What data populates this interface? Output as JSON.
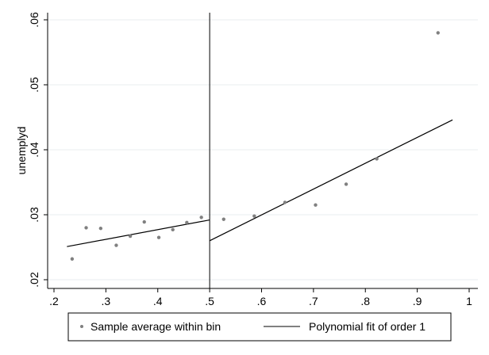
{
  "chart_data": {
    "type": "scatter",
    "title": "",
    "xlabel": "",
    "ylabel": "unemplyd",
    "xlim": [
      0.2,
      1.0
    ],
    "ylim": [
      0.02,
      0.06
    ],
    "x_ticks": [
      0.2,
      0.3,
      0.4,
      0.5,
      0.6,
      0.7,
      0.8,
      0.9,
      1.0
    ],
    "x_tick_labels": [
      ".2",
      ".3",
      ".4",
      ".5",
      ".6",
      ".7",
      ".8",
      ".9",
      "1"
    ],
    "y_ticks": [
      0.02,
      0.03,
      0.04,
      0.05,
      0.06
    ],
    "y_tick_labels": [
      ".02",
      ".03",
      ".04",
      ".05",
      ".06"
    ],
    "grid": "horizontal",
    "cutoff": 0.5,
    "series": [
      {
        "name": "Sample average within bin",
        "kind": "scatter",
        "color": "#808080",
        "points": [
          [
            0.235,
            0.0232
          ],
          [
            0.262,
            0.028
          ],
          [
            0.29,
            0.0279
          ],
          [
            0.32,
            0.0253
          ],
          [
            0.347,
            0.0267
          ],
          [
            0.374,
            0.0289
          ],
          [
            0.402,
            0.0265
          ],
          [
            0.429,
            0.0277
          ],
          [
            0.456,
            0.0288
          ],
          [
            0.484,
            0.0296
          ],
          [
            0.527,
            0.0293
          ],
          [
            0.586,
            0.0298
          ],
          [
            0.645,
            0.0319
          ],
          [
            0.704,
            0.0315
          ],
          [
            0.763,
            0.0347
          ],
          [
            0.822,
            0.0386
          ],
          [
            0.94,
            0.058
          ]
        ]
      },
      {
        "name": "Polynomial fit of order 1",
        "kind": "line",
        "color": "#000000",
        "segments": [
          [
            [
              0.225,
              0.0251
            ],
            [
              0.5,
              0.0292
            ]
          ],
          [
            [
              0.5,
              0.026
            ],
            [
              0.968,
              0.0446
            ]
          ]
        ]
      }
    ],
    "legend": {
      "position": "bottom",
      "entries": [
        "Sample average within bin",
        "Polynomial fit of order 1"
      ]
    }
  }
}
